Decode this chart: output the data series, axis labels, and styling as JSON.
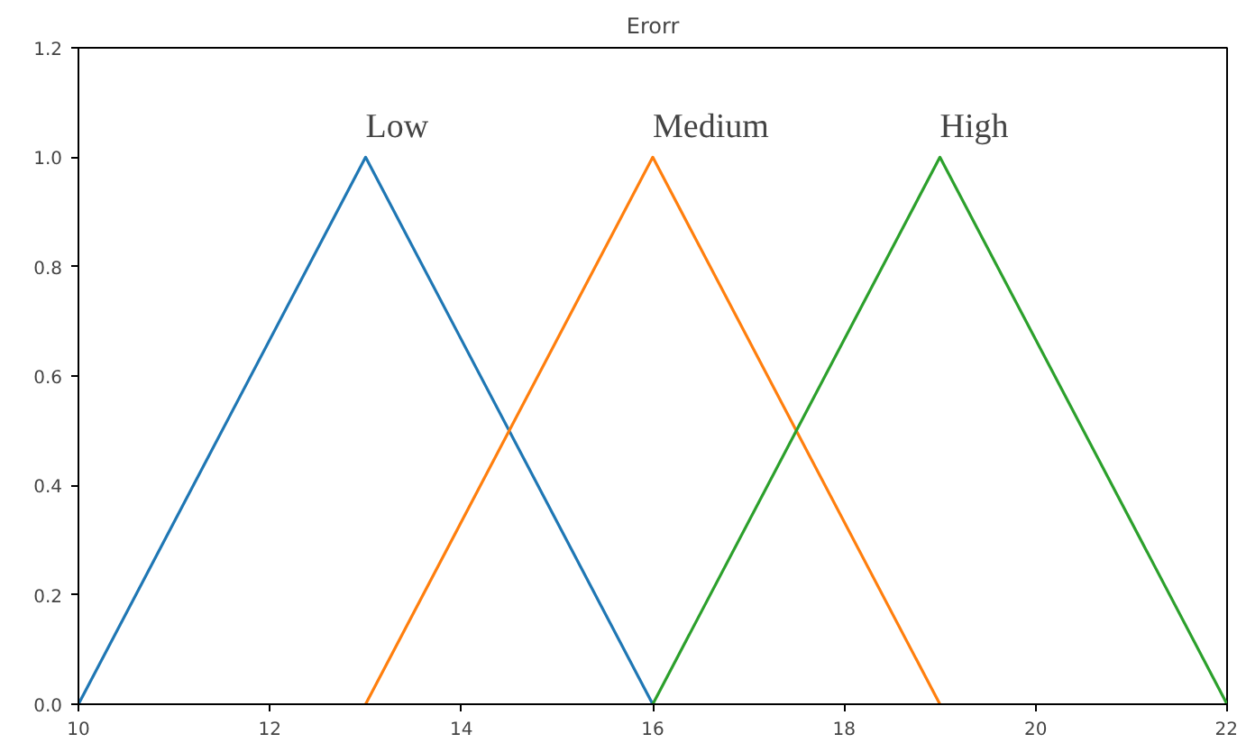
{
  "chart_data": {
    "type": "line",
    "title": "Erorr",
    "series": [
      {
        "name": "Low",
        "color": "#1f77b4",
        "x": [
          10,
          13,
          16
        ],
        "values": [
          0,
          1,
          0
        ]
      },
      {
        "name": "Medium",
        "color": "#ff7f0e",
        "x": [
          13,
          16,
          19
        ],
        "values": [
          0,
          1,
          0
        ]
      },
      {
        "name": "High",
        "color": "#2ca02c",
        "x": [
          16,
          19,
          22
        ],
        "values": [
          0,
          1,
          0
        ]
      }
    ],
    "xlim": [
      10,
      22
    ],
    "xticks": [
      10,
      12,
      14,
      16,
      18,
      20,
      22
    ],
    "ylim": [
      0,
      1.2
    ],
    "yticks": [
      {
        "value": 0,
        "label": "0.0"
      },
      {
        "value": 0.2,
        "label": "0.2"
      },
      {
        "value": 0.4,
        "label": "0.4"
      },
      {
        "value": 0.6,
        "label": "0.6"
      },
      {
        "value": 0.8,
        "label": "0.8"
      },
      {
        "value": 1.0,
        "label": "1.0"
      },
      {
        "value": 1.2,
        "label": "1.2"
      }
    ],
    "grid": false,
    "legend": false
  }
}
